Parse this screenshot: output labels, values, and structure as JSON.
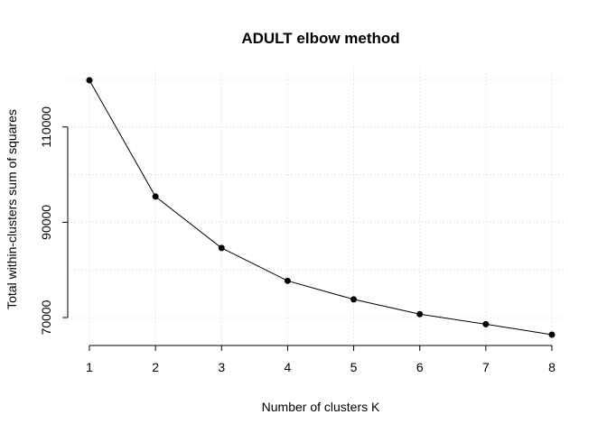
{
  "chart_data": {
    "type": "line",
    "title": "ADULT elbow method",
    "xlabel": "Number of clusters K",
    "ylabel": "Total within-clusters sum of squares",
    "x": [
      1,
      2,
      3,
      4,
      5,
      6,
      7,
      8
    ],
    "series": [
      {
        "values": [
          119800,
          95400,
          84600,
          77700,
          73800,
          70700,
          68600,
          66400
        ]
      }
    ],
    "x_ticks": [
      1,
      2,
      3,
      4,
      5,
      6,
      7,
      8
    ],
    "y_ticks": [
      70000,
      90000,
      110000
    ],
    "y_gridlines": [
      70000,
      80000,
      90000,
      100000,
      110000,
      120000
    ],
    "xlim": [
      1,
      8
    ],
    "ylim": [
      66400,
      119800
    ],
    "grid": true,
    "colors": {
      "line": "#000000",
      "points": "#000000",
      "grid": "#d3d3d3"
    }
  }
}
